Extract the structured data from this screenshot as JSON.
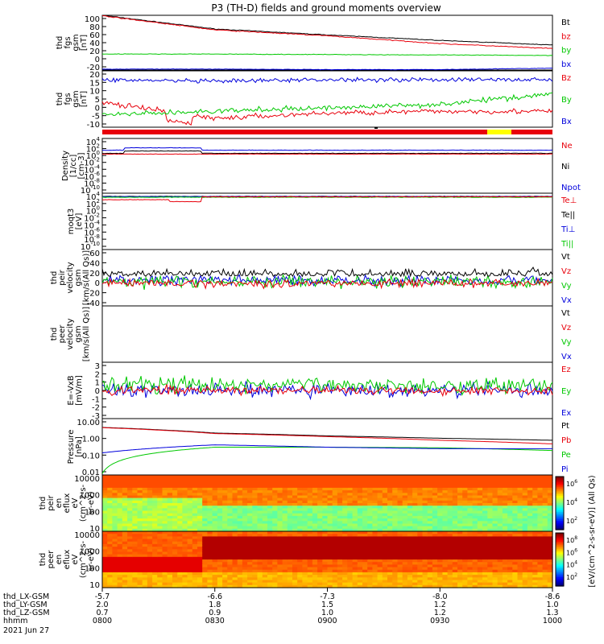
{
  "title": "P3 (TH-D) fields and ground moments overview",
  "colors": {
    "black": "#000000",
    "red": "#e8000b",
    "green": "#00c800",
    "blue": "#0000dc",
    "yellow": "#ffff00"
  },
  "panels": [
    {
      "id": "fgs-gsm",
      "ylabel": [
        "thd",
        "fgs",
        "gsm",
        "[nT]"
      ],
      "yticks": [
        "100",
        "80",
        "60",
        "40",
        "20",
        "0",
        "-20"
      ],
      "ylim": [
        -20,
        100
      ],
      "legend": [
        {
          "text": "Bt",
          "color": "black"
        },
        {
          "text": "bz",
          "color": "red"
        },
        {
          "text": "by",
          "color": "green"
        },
        {
          "text": "bx",
          "color": "blue"
        }
      ]
    },
    {
      "id": "fgs-gsm-zoom",
      "ylabel": [
        "thd",
        "fgs",
        "gsm",
        "[nT]"
      ],
      "yticks": [
        "20",
        "15",
        "10",
        "5",
        "0",
        "-5",
        "-10"
      ],
      "ylim": [
        -12,
        20
      ],
      "legend": [
        {
          "text": "Bz",
          "color": "red"
        },
        {
          "text": "By",
          "color": "green"
        },
        {
          "text": "Bx",
          "color": "blue"
        }
      ]
    },
    {
      "id": "density",
      "ylabel": [
        "Density",
        "[1/cc]",
        "[cm-3]"
      ],
      "yticks": [
        "10^4",
        "10^2",
        "10^0",
        "10^-2",
        "10^-4",
        "10^-6",
        "10^-8",
        "10^-10"
      ],
      "ylim": [
        -10,
        4
      ],
      "log": true,
      "legend": [
        {
          "text": "Ne",
          "color": "red"
        },
        {
          "text": "Ni",
          "color": "black"
        },
        {
          "text": "Npot",
          "color": "blue"
        }
      ]
    },
    {
      "id": "temperature",
      "ylabel": [
        "moqt3",
        "[eV]"
      ],
      "yticks": [
        "10^4",
        "10^2",
        "10^0",
        "10^-2",
        "10^-4",
        "10^-6",
        "10^-8",
        "10^-10"
      ],
      "ylim": [
        -10,
        4
      ],
      "log": true,
      "legend": [
        {
          "text": "Te⊥",
          "color": "red"
        },
        {
          "text": "Te||",
          "color": "black"
        },
        {
          "text": "Ti⊥",
          "color": "blue"
        },
        {
          "text": "Ti||",
          "color": "green"
        }
      ]
    },
    {
      "id": "peir-velocity",
      "ylabel": [
        "thd",
        "peir",
        "velocity",
        "gsm",
        "[km/s(All Qs)]"
      ],
      "yticks": [
        "60",
        "40",
        "20",
        "0",
        "-20",
        "-40"
      ],
      "ylim": [
        -40,
        65
      ],
      "legend": [
        {
          "text": "Vt",
          "color": "black"
        },
        {
          "text": "Vz",
          "color": "red"
        },
        {
          "text": "Vy",
          "color": "green"
        },
        {
          "text": "Vx",
          "color": "blue"
        }
      ]
    },
    {
      "id": "peer-velocity",
      "ylabel": [
        "thd",
        "peer",
        "velocity",
        "gsm",
        "[km/s(All Qs)]"
      ],
      "yticks": [],
      "ylim": [
        0,
        1
      ],
      "legend": [
        {
          "text": "Vt",
          "color": "black"
        },
        {
          "text": "Vz",
          "color": "red"
        },
        {
          "text": "Vy",
          "color": "green"
        },
        {
          "text": "Vx",
          "color": "blue"
        }
      ]
    },
    {
      "id": "efield",
      "ylabel": [
        "E=-VxB",
        "[mV/m]"
      ],
      "yticks": [
        "3",
        "2",
        "1",
        "0",
        "-1",
        "-2",
        "-3"
      ],
      "ylim": [
        -3,
        3
      ],
      "legend": [
        {
          "text": "Ez",
          "color": "red"
        },
        {
          "text": "Ey",
          "color": "green"
        },
        {
          "text": "Ex",
          "color": "blue"
        }
      ]
    },
    {
      "id": "pressure",
      "ylabel": [
        "Pressure",
        "[nPa]"
      ],
      "yticks": [
        "10.00",
        "1.00",
        "0.10",
        "0.01"
      ],
      "ylim": [
        -2,
        1
      ],
      "log": true,
      "legend": [
        {
          "text": "Pt",
          "color": "black"
        },
        {
          "text": "Pb",
          "color": "red"
        },
        {
          "text": "Pe",
          "color": "green"
        },
        {
          "text": "Pi",
          "color": "blue"
        }
      ]
    },
    {
      "id": "peir-spec",
      "ylabel": [
        "thd",
        "peir",
        "en",
        "eflux",
        "eV",
        "(cm^2-s-",
        "sr-eV)"
      ],
      "yticks": [
        "10000",
        "1000",
        "100",
        "10"
      ],
      "ylim": [
        0.9,
        4.2
      ],
      "log": true,
      "legend": []
    },
    {
      "id": "peer-spec",
      "ylabel": [
        "thd",
        "peer",
        "en",
        "eflux",
        "eV",
        "(cm^2-s-",
        "sr-eV)"
      ],
      "yticks": [
        "10000",
        "1000",
        "100",
        "10"
      ],
      "ylim": [
        0.9,
        4.2
      ],
      "log": true,
      "legend": []
    }
  ],
  "colorbar": {
    "label": "[eV/(cm^2-s-sr-eV)] (All Qs)",
    "ticks_top": [
      "10^6",
      "10^4",
      "10^2"
    ],
    "ticks_bottom": [
      "10^8",
      "10^6",
      "10^4",
      "10^2"
    ]
  },
  "xaxis": {
    "rows": [
      {
        "label": "thd_LX-GSM",
        "values": [
          "-5.7",
          "-6.6",
          "-7.3",
          "-8.0",
          "-8.6"
        ]
      },
      {
        "label": "thd_LY-GSM",
        "values": [
          "2.0",
          "1.8",
          "1.5",
          "1.2",
          "1.0"
        ]
      },
      {
        "label": "thd_LZ-GSM",
        "values": [
          "0.7",
          "0.9",
          "1.0",
          "1.2",
          "1.3"
        ]
      },
      {
        "label": "hhmm",
        "values": [
          "0800",
          "0830",
          "0900",
          "0930",
          "1000"
        ]
      }
    ],
    "date": "2021 Jun 27"
  },
  "chart_data": {
    "type": "line",
    "title": "P3 (TH-D) fields and ground moments overview",
    "x": [
      "0800",
      "0830",
      "0900",
      "0930",
      "1000"
    ],
    "series": [
      {
        "name": "Bt",
        "values": [
          100,
          70,
          57,
          45,
          35
        ]
      },
      {
        "name": "bz",
        "values": [
          99,
          68,
          55,
          38,
          27
        ]
      },
      {
        "name": "by",
        "values": [
          15,
          15,
          14,
          13,
          12
        ]
      },
      {
        "name": "bx",
        "values": [
          -18,
          -18,
          -19,
          -19,
          -16
        ]
      },
      {
        "name": "Bz",
        "values": [
          2,
          -7,
          -4,
          -3,
          -3
        ]
      },
      {
        "name": "By",
        "values": [
          -5,
          -3,
          -1,
          1,
          7
        ]
      },
      {
        "name": "Bx",
        "values": [
          15,
          14,
          15,
          15,
          15
        ]
      },
      {
        "name": "Pt",
        "values": [
          3.4,
          1.7,
          1.2,
          0.9,
          0.7
        ]
      },
      {
        "name": "Pb",
        "values": [
          3.3,
          1.6,
          1.1,
          0.7,
          0.45
        ]
      },
      {
        "name": "Pe",
        "values": [
          0.012,
          0.3,
          0.3,
          0.28,
          0.2
        ]
      },
      {
        "name": "Pi",
        "values": [
          0.15,
          0.4,
          0.3,
          0.25,
          0.25
        ]
      }
    ]
  }
}
